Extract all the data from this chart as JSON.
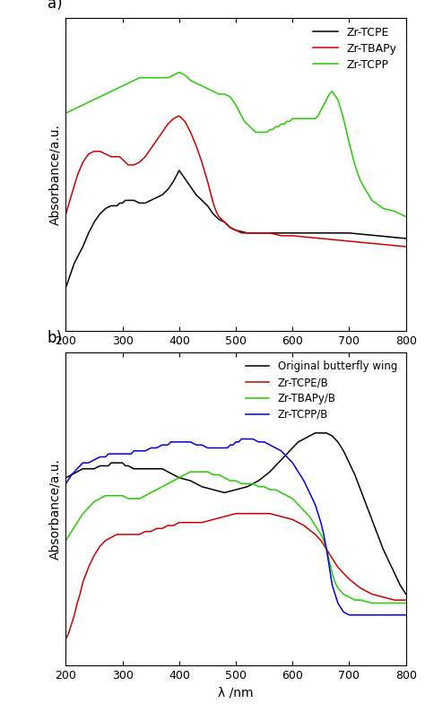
{
  "panel_a": {
    "title_label": "a)",
    "xlabel": "λ /nm",
    "ylabel": "Absorbance/a.u.",
    "xlim": [
      200,
      800
    ],
    "ylim": [
      -0.05,
      1.1
    ],
    "legend": [
      "Zr-TCPE",
      "Zr-TBAPy",
      "Zr-TCPP"
    ],
    "colors": [
      "#000000",
      "#cc0000",
      "#22cc00"
    ],
    "zr_tcpe": {
      "x": [
        200,
        210,
        215,
        220,
        225,
        230,
        240,
        250,
        260,
        270,
        280,
        285,
        290,
        295,
        300,
        305,
        310,
        320,
        330,
        340,
        350,
        360,
        370,
        380,
        390,
        400,
        410,
        420,
        430,
        440,
        450,
        460,
        470,
        480,
        490,
        500,
        520,
        540,
        560,
        580,
        600,
        650,
        700,
        750,
        800
      ],
      "y": [
        0.11,
        0.17,
        0.2,
        0.22,
        0.24,
        0.26,
        0.31,
        0.35,
        0.38,
        0.4,
        0.41,
        0.41,
        0.41,
        0.42,
        0.42,
        0.43,
        0.43,
        0.43,
        0.42,
        0.42,
        0.43,
        0.44,
        0.45,
        0.47,
        0.5,
        0.54,
        0.51,
        0.48,
        0.45,
        0.43,
        0.41,
        0.38,
        0.36,
        0.35,
        0.33,
        0.32,
        0.31,
        0.31,
        0.31,
        0.31,
        0.31,
        0.31,
        0.31,
        0.3,
        0.29
      ]
    },
    "zr_tbapy": {
      "x": [
        200,
        210,
        220,
        230,
        240,
        250,
        260,
        270,
        280,
        285,
        290,
        295,
        300,
        305,
        310,
        315,
        320,
        330,
        340,
        350,
        360,
        370,
        380,
        390,
        400,
        410,
        420,
        430,
        440,
        450,
        455,
        460,
        465,
        470,
        480,
        490,
        500,
        510,
        520,
        540,
        560,
        580,
        600,
        650,
        700,
        750,
        800
      ],
      "y": [
        0.38,
        0.45,
        0.52,
        0.57,
        0.6,
        0.61,
        0.61,
        0.6,
        0.59,
        0.59,
        0.59,
        0.59,
        0.58,
        0.57,
        0.56,
        0.56,
        0.56,
        0.57,
        0.59,
        0.62,
        0.65,
        0.68,
        0.71,
        0.73,
        0.74,
        0.72,
        0.68,
        0.63,
        0.57,
        0.5,
        0.46,
        0.42,
        0.39,
        0.37,
        0.35,
        0.33,
        0.32,
        0.31,
        0.31,
        0.31,
        0.31,
        0.3,
        0.3,
        0.29,
        0.28,
        0.27,
        0.26
      ]
    },
    "zr_tcpp": {
      "x": [
        200,
        210,
        220,
        230,
        240,
        250,
        260,
        270,
        280,
        290,
        300,
        310,
        320,
        330,
        340,
        350,
        360,
        370,
        380,
        390,
        400,
        410,
        420,
        430,
        440,
        450,
        460,
        470,
        480,
        490,
        500,
        505,
        510,
        515,
        520,
        525,
        530,
        535,
        540,
        545,
        550,
        555,
        560,
        565,
        570,
        575,
        580,
        585,
        590,
        595,
        600,
        605,
        610,
        615,
        620,
        625,
        630,
        635,
        640,
        645,
        650,
        655,
        660,
        665,
        670,
        680,
        690,
        700,
        710,
        720,
        740,
        760,
        780,
        800
      ],
      "y": [
        0.75,
        0.76,
        0.77,
        0.78,
        0.79,
        0.8,
        0.81,
        0.82,
        0.83,
        0.84,
        0.85,
        0.86,
        0.87,
        0.88,
        0.88,
        0.88,
        0.88,
        0.88,
        0.88,
        0.89,
        0.9,
        0.89,
        0.87,
        0.86,
        0.85,
        0.84,
        0.83,
        0.82,
        0.82,
        0.81,
        0.78,
        0.76,
        0.74,
        0.72,
        0.71,
        0.7,
        0.69,
        0.68,
        0.68,
        0.68,
        0.68,
        0.68,
        0.69,
        0.69,
        0.7,
        0.7,
        0.71,
        0.71,
        0.72,
        0.72,
        0.73,
        0.73,
        0.73,
        0.73,
        0.73,
        0.73,
        0.73,
        0.73,
        0.73,
        0.74,
        0.76,
        0.78,
        0.8,
        0.82,
        0.83,
        0.8,
        0.73,
        0.64,
        0.56,
        0.5,
        0.43,
        0.4,
        0.39,
        0.37
      ]
    }
  },
  "panel_b": {
    "title_label": "b)",
    "xlabel": "λ /nm",
    "ylabel": "Absorbance/a.u.",
    "xlim": [
      200,
      800
    ],
    "ylim": [
      -0.05,
      1.0
    ],
    "legend": [
      "Original butterfly wing",
      "Zr-TCPE/B",
      "Zr-TBAPy/B",
      "Zr-TCPP/B"
    ],
    "colors": [
      "#000000",
      "#cc0000",
      "#22cc00",
      "#0000dd"
    ],
    "butterfly": {
      "x": [
        200,
        210,
        220,
        230,
        240,
        250,
        260,
        265,
        270,
        275,
        280,
        285,
        290,
        295,
        300,
        305,
        310,
        320,
        330,
        340,
        350,
        360,
        370,
        380,
        390,
        400,
        420,
        440,
        460,
        480,
        500,
        520,
        540,
        560,
        570,
        580,
        590,
        600,
        610,
        620,
        630,
        640,
        650,
        660,
        670,
        680,
        690,
        700,
        710,
        720,
        730,
        740,
        750,
        760,
        770,
        780,
        790,
        800
      ],
      "y": [
        0.58,
        0.59,
        0.6,
        0.61,
        0.61,
        0.61,
        0.62,
        0.62,
        0.62,
        0.62,
        0.63,
        0.63,
        0.63,
        0.63,
        0.63,
        0.62,
        0.62,
        0.61,
        0.61,
        0.61,
        0.61,
        0.61,
        0.61,
        0.6,
        0.59,
        0.58,
        0.57,
        0.55,
        0.54,
        0.53,
        0.54,
        0.55,
        0.57,
        0.6,
        0.62,
        0.64,
        0.66,
        0.68,
        0.7,
        0.71,
        0.72,
        0.73,
        0.73,
        0.73,
        0.72,
        0.7,
        0.67,
        0.63,
        0.59,
        0.54,
        0.49,
        0.44,
        0.39,
        0.34,
        0.3,
        0.26,
        0.22,
        0.19
      ]
    },
    "zr_tcpe_b": {
      "x": [
        200,
        205,
        210,
        215,
        220,
        225,
        230,
        240,
        250,
        260,
        270,
        280,
        290,
        300,
        310,
        320,
        330,
        340,
        350,
        360,
        370,
        380,
        390,
        400,
        420,
        440,
        460,
        480,
        500,
        520,
        540,
        560,
        580,
        600,
        620,
        640,
        650,
        660,
        670,
        680,
        700,
        720,
        740,
        760,
        780,
        800
      ],
      "y": [
        0.04,
        0.06,
        0.09,
        0.12,
        0.16,
        0.19,
        0.23,
        0.28,
        0.32,
        0.35,
        0.37,
        0.38,
        0.39,
        0.39,
        0.39,
        0.39,
        0.39,
        0.4,
        0.4,
        0.41,
        0.41,
        0.42,
        0.42,
        0.43,
        0.43,
        0.43,
        0.44,
        0.45,
        0.46,
        0.46,
        0.46,
        0.46,
        0.45,
        0.44,
        0.42,
        0.39,
        0.37,
        0.34,
        0.31,
        0.28,
        0.24,
        0.21,
        0.19,
        0.18,
        0.17,
        0.17
      ]
    },
    "zr_tbapy_b": {
      "x": [
        200,
        210,
        220,
        230,
        240,
        250,
        260,
        270,
        280,
        290,
        300,
        310,
        320,
        330,
        340,
        350,
        360,
        370,
        380,
        390,
        400,
        410,
        420,
        430,
        440,
        450,
        460,
        470,
        480,
        490,
        500,
        510,
        520,
        530,
        540,
        550,
        560,
        570,
        580,
        590,
        600,
        610,
        620,
        630,
        640,
        650,
        655,
        660,
        665,
        670,
        675,
        680,
        690,
        700,
        710,
        720,
        740,
        760,
        780,
        800
      ],
      "y": [
        0.37,
        0.4,
        0.43,
        0.46,
        0.48,
        0.5,
        0.51,
        0.52,
        0.52,
        0.52,
        0.52,
        0.51,
        0.51,
        0.51,
        0.52,
        0.53,
        0.54,
        0.55,
        0.56,
        0.57,
        0.58,
        0.59,
        0.6,
        0.6,
        0.6,
        0.6,
        0.59,
        0.59,
        0.58,
        0.57,
        0.57,
        0.56,
        0.56,
        0.56,
        0.55,
        0.55,
        0.54,
        0.54,
        0.53,
        0.52,
        0.51,
        0.49,
        0.47,
        0.45,
        0.42,
        0.39,
        0.37,
        0.34,
        0.3,
        0.26,
        0.23,
        0.21,
        0.19,
        0.18,
        0.17,
        0.17,
        0.16,
        0.16,
        0.16,
        0.16
      ]
    },
    "zr_tcpp_b": {
      "x": [
        200,
        210,
        215,
        220,
        225,
        230,
        240,
        250,
        260,
        270,
        275,
        280,
        285,
        290,
        295,
        300,
        305,
        310,
        315,
        320,
        325,
        330,
        340,
        350,
        360,
        370,
        375,
        380,
        385,
        390,
        395,
        400,
        405,
        410,
        415,
        420,
        430,
        440,
        450,
        460,
        470,
        480,
        485,
        490,
        495,
        500,
        505,
        510,
        515,
        520,
        525,
        530,
        540,
        550,
        560,
        570,
        580,
        590,
        600,
        610,
        620,
        630,
        640,
        645,
        650,
        655,
        660,
        665,
        670,
        680,
        690,
        700,
        710,
        720,
        740,
        760,
        780,
        800
      ],
      "y": [
        0.56,
        0.59,
        0.6,
        0.61,
        0.62,
        0.63,
        0.63,
        0.64,
        0.65,
        0.65,
        0.66,
        0.66,
        0.66,
        0.66,
        0.66,
        0.66,
        0.66,
        0.66,
        0.66,
        0.67,
        0.67,
        0.67,
        0.67,
        0.68,
        0.68,
        0.69,
        0.69,
        0.69,
        0.7,
        0.7,
        0.7,
        0.7,
        0.7,
        0.7,
        0.7,
        0.7,
        0.69,
        0.69,
        0.68,
        0.68,
        0.68,
        0.68,
        0.68,
        0.69,
        0.69,
        0.7,
        0.7,
        0.71,
        0.71,
        0.71,
        0.71,
        0.71,
        0.7,
        0.7,
        0.69,
        0.68,
        0.67,
        0.65,
        0.63,
        0.6,
        0.57,
        0.53,
        0.49,
        0.46,
        0.43,
        0.39,
        0.34,
        0.28,
        0.22,
        0.16,
        0.13,
        0.12,
        0.12,
        0.12,
        0.12,
        0.12,
        0.12,
        0.12
      ]
    }
  },
  "background_color": "#ffffff",
  "figure_bg": "#ffffff"
}
